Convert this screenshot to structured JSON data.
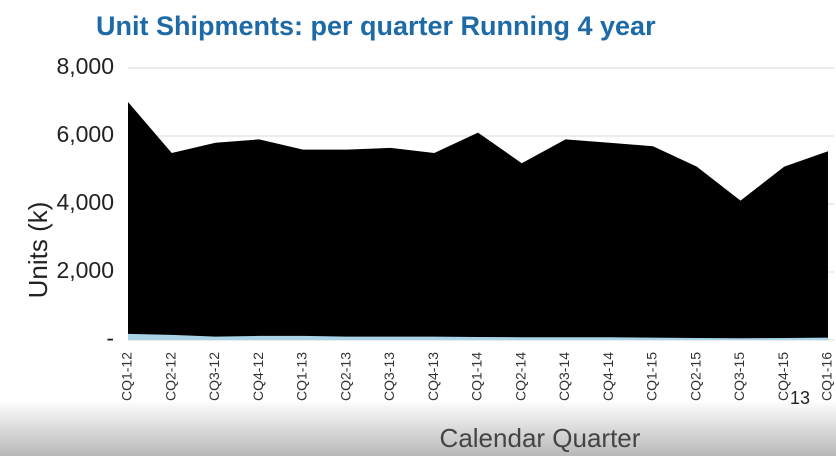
{
  "chart_data": {
    "type": "area",
    "title": "Unit Shipments: per quarter Running 4 year",
    "y_label": "Units (k)",
    "x_label": "Calendar Quarter",
    "page_number": "13",
    "categories": [
      "CQ1-12",
      "CQ2-12",
      "CQ3-12",
      "CQ4-12",
      "CQ1-13",
      "CQ2-13",
      "CQ3-13",
      "CQ4-13",
      "CQ1-14",
      "CQ2-14",
      "CQ3-14",
      "CQ4-14",
      "CQ1-15",
      "CQ2-15",
      "CQ3-15",
      "CQ4-15",
      "CQ1-16"
    ],
    "series": [
      {
        "color": "#000000",
        "values": [
          7000,
          5500,
          5800,
          5900,
          5600,
          5600,
          5650,
          5500,
          6100,
          5200,
          5900,
          5800,
          5700,
          5100,
          4100,
          5100,
          5550
        ]
      },
      {
        "color": "#a9d3e6",
        "values": [
          180,
          150,
          100,
          120,
          120,
          100,
          100,
          100,
          90,
          80,
          80,
          80,
          70,
          60,
          50,
          60,
          70
        ]
      }
    ],
    "ylim": [
      0,
      8000
    ],
    "yticks": [
      {
        "value": 0,
        "label": "-"
      },
      {
        "value": 2000,
        "label": "2,000"
      },
      {
        "value": 4000,
        "label": "4,000"
      },
      {
        "value": 6000,
        "label": "6,000"
      },
      {
        "value": 8000,
        "label": "8,000"
      }
    ],
    "grid": true
  }
}
